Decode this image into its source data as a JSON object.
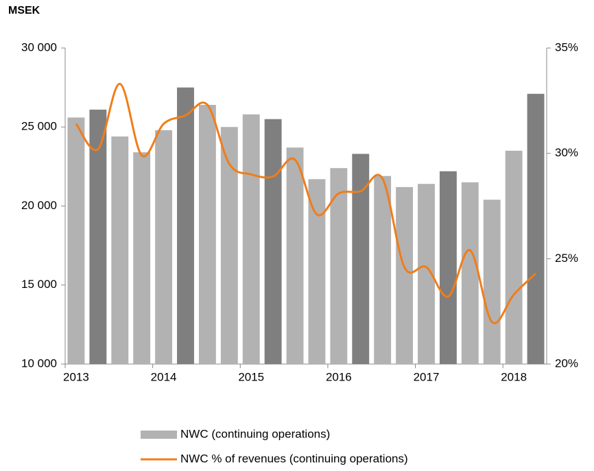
{
  "chart_data": {
    "type": "bar-line",
    "unit_label": "MSEK",
    "categories": [
      "2013",
      null,
      null,
      null,
      "2014",
      null,
      null,
      null,
      "2015",
      null,
      null,
      null,
      "2016",
      null,
      null,
      null,
      "2017",
      null,
      null,
      null,
      "2018",
      null
    ],
    "series": [
      {
        "name": "NWC (continuing operations)",
        "type": "bar",
        "color": "#b2b2b2",
        "bar_colors": [
          "#b2b2b2",
          "#7f7f7f",
          "#b2b2b2",
          "#b2b2b2",
          "#b2b2b2",
          "#7f7f7f",
          "#b2b2b2",
          "#b2b2b2",
          "#b2b2b2",
          "#7f7f7f",
          "#b2b2b2",
          "#b2b2b2",
          "#b2b2b2",
          "#7f7f7f",
          "#b2b2b2",
          "#b2b2b2",
          "#b2b2b2",
          "#7f7f7f",
          "#b2b2b2",
          "#b2b2b2",
          "#b2b2b2",
          "#7f7f7f"
        ],
        "values": [
          25600,
          26100,
          24400,
          23400,
          24800,
          27500,
          26400,
          25000,
          25800,
          25500,
          23700,
          21700,
          22400,
          23300,
          21900,
          21200,
          21400,
          22200,
          21500,
          20400,
          23500,
          27100
        ]
      },
      {
        "name": "NWC % of revenues (continuing operations)",
        "type": "line",
        "axis": "y2",
        "color": "#f07d1a",
        "smooth": true,
        "values": [
          31.4,
          30.2,
          33.3,
          29.9,
          31.4,
          31.8,
          32.3,
          29.5,
          29.0,
          28.9,
          29.7,
          27.1,
          28.1,
          28.2,
          28.8,
          24.6,
          24.6,
          23.2,
          25.4,
          22.0,
          23.3,
          24.3
        ]
      }
    ],
    "ylim": [
      10000,
      30000
    ],
    "yticks": [
      {
        "value": 10000,
        "label": "10 000"
      },
      {
        "value": 15000,
        "label": "15 000"
      },
      {
        "value": 20000,
        "label": "20 000"
      },
      {
        "value": 25000,
        "label": "25 000"
      },
      {
        "value": 30000,
        "label": "30 000"
      }
    ],
    "y2lim": [
      20,
      35
    ],
    "y2ticks": [
      {
        "value": 20,
        "label": "20%"
      },
      {
        "value": 25,
        "label": "25%"
      },
      {
        "value": 30,
        "label": "30%"
      },
      {
        "value": 35,
        "label": "35%"
      }
    ],
    "grid": false,
    "legend": "bottom"
  }
}
